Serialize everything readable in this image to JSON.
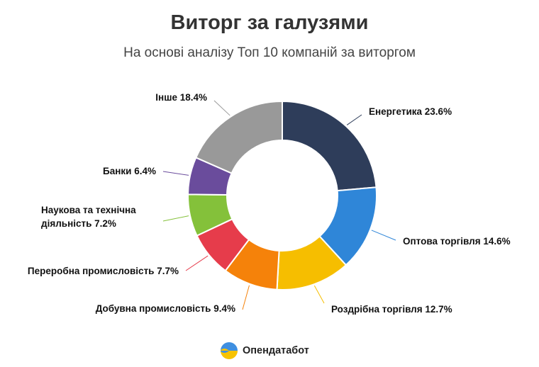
{
  "header": {
    "title": "Виторг за галузями",
    "subtitle": "На основі аналізу Топ 10 компаній за виторгом"
  },
  "brand": {
    "name": "Опендатабот"
  },
  "chart_data": {
    "type": "pie",
    "style": "donut",
    "title": "Виторг за галузями",
    "subtitle": "На основі аналізу Топ 10 компаній за виторгом",
    "categories": [
      "Енергетика",
      "Оптова торгівля",
      "Роздрібна торгівля",
      "Добувна промисловість",
      "Переробна промисловість",
      "Наукова та технічна діяльність",
      "Банки",
      "Інше"
    ],
    "values": [
      23.6,
      14.6,
      12.7,
      9.4,
      7.7,
      7.2,
      6.4,
      18.4
    ],
    "labels": [
      [
        "Енергетика 23.6%"
      ],
      [
        "Оптова торгівля 14.6%"
      ],
      [
        "Роздрібна торгівля 12.7%"
      ],
      [
        "Добувна промисловість 9.4%"
      ],
      [
        "Переробна промисловість 7.7%"
      ],
      [
        "Наукова та технічна",
        "діяльність 7.2%"
      ],
      [
        "Банки 6.4%"
      ],
      [
        "Інше 18.4%"
      ]
    ],
    "colors": [
      "#2e3d5a",
      "#2f86d8",
      "#f6be00",
      "#f5820a",
      "#e63c4b",
      "#84c13a",
      "#6a4c9c",
      "#999999"
    ],
    "unit": "%",
    "legend": "none"
  }
}
